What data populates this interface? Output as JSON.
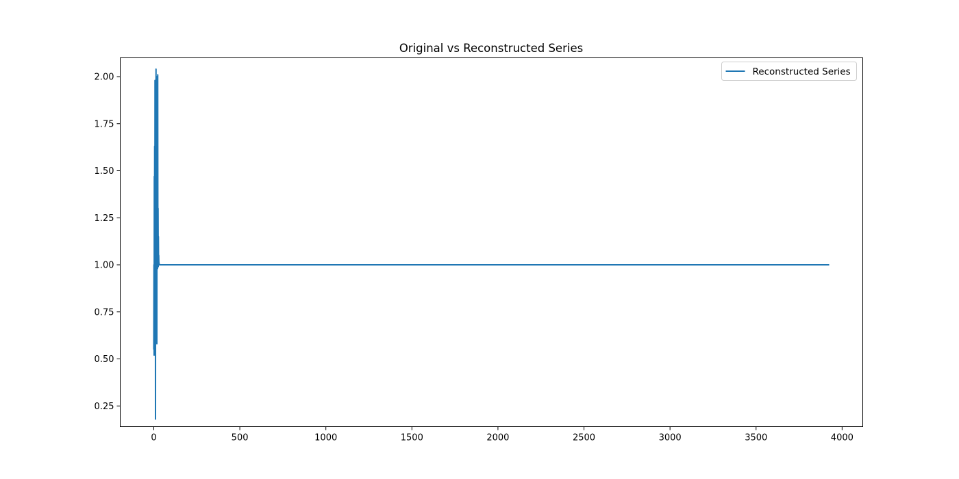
{
  "chart_data": {
    "type": "line",
    "title": "Original vs Reconstructed Series",
    "xlabel": "",
    "ylabel": "",
    "xlim": [
      -195,
      4120
    ],
    "ylim": [
      0.14,
      2.1
    ],
    "x_ticks": [
      0,
      500,
      1000,
      1500,
      2000,
      2500,
      3000,
      3500,
      4000
    ],
    "x_tick_labels": [
      "0",
      "500",
      "1000",
      "1500",
      "2000",
      "2500",
      "3000",
      "3500",
      "4000"
    ],
    "y_ticks": [
      0.25,
      0.5,
      0.75,
      1.0,
      1.25,
      1.5,
      1.75,
      2.0
    ],
    "y_tick_labels": [
      "0.25",
      "0.50",
      "0.75",
      "1.00",
      "1.25",
      "1.50",
      "1.75",
      "2.00"
    ],
    "grid": false,
    "legend_position": "upper right",
    "series": [
      {
        "name": "Reconstructed Series",
        "color": "#1f77b4",
        "x": [
          0,
          1,
          2,
          3,
          4,
          5,
          6,
          7,
          8,
          9,
          10,
          11,
          12,
          13,
          14,
          15,
          16,
          17,
          18,
          19,
          20,
          21,
          22,
          23,
          24,
          25,
          26,
          27,
          28,
          29,
          30,
          31,
          32,
          33,
          34,
          35,
          36,
          37,
          38,
          39,
          40,
          41,
          42,
          43,
          44,
          45,
          46,
          47,
          48,
          49,
          50,
          51,
          52,
          3925
        ],
        "y": [
          0.55,
          1.0,
          0.52,
          1.47,
          0.7,
          1.63,
          0.75,
          1.98,
          0.6,
          1.55,
          0.18,
          1.7,
          0.85,
          2.04,
          0.98,
          1.85,
          1.0,
          1.95,
          0.58,
          2.0,
          1.0,
          1.6,
          0.98,
          2.01,
          1.02,
          1.3,
          0.99,
          1.15,
          1.0,
          1.05,
          1.0,
          1.01,
          1.0,
          1.0,
          1.0,
          1.0,
          1.0,
          1.0,
          1.0,
          1.0,
          1.0,
          1.0,
          1.0,
          1.0,
          1.0,
          1.0,
          1.0,
          1.0,
          1.0,
          1.0,
          1.0,
          1.0,
          1.0,
          1.0
        ]
      }
    ]
  }
}
